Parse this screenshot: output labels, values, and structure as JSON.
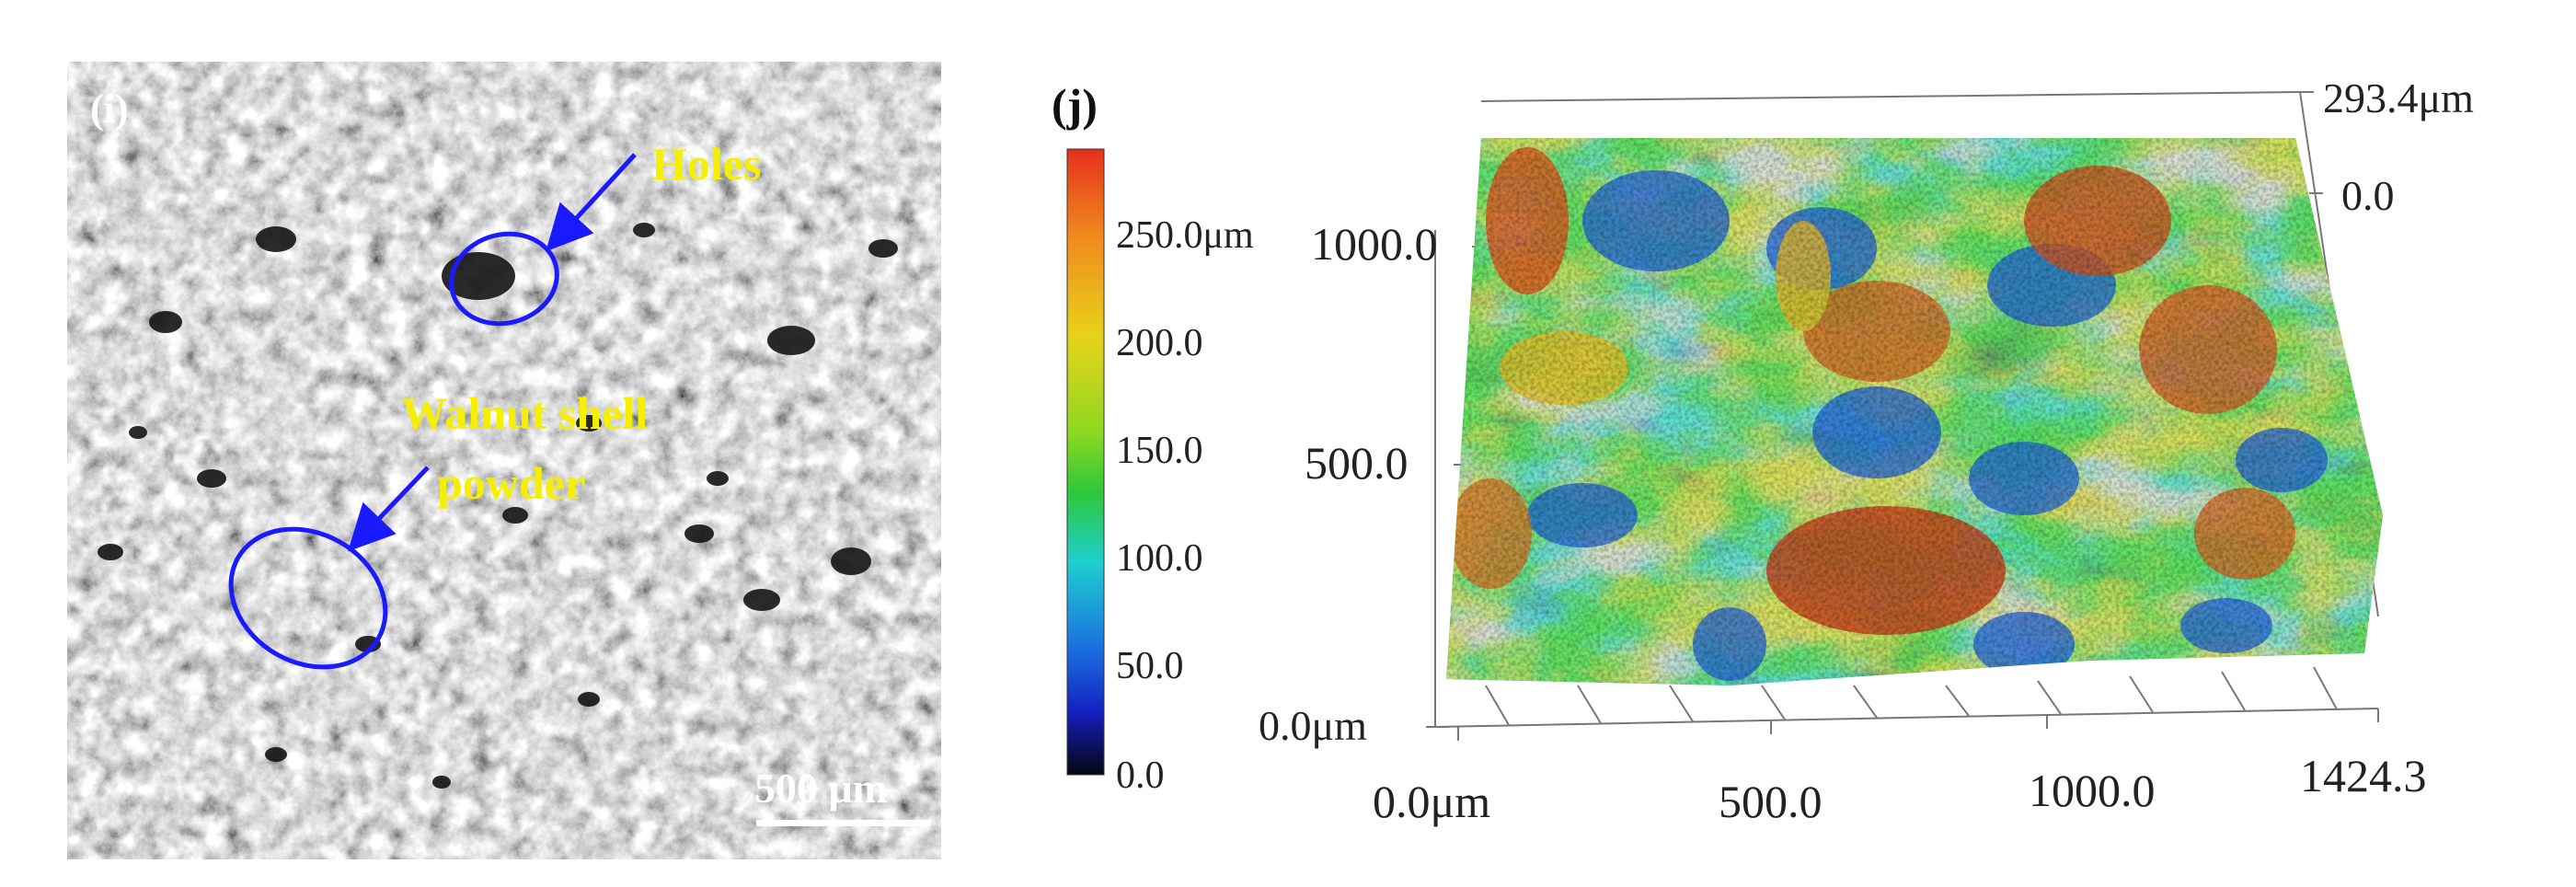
{
  "panel_i": {
    "label": "(i)",
    "annotations": {
      "holes": "Holes",
      "walnut_line1": "Walnut shell",
      "walnut_line2": "powder"
    },
    "scale_bar": "500 μm",
    "colors": {
      "annotation_text": "#f5f000",
      "arrow": "#1a1aff",
      "ellipse": "#1a1aff"
    }
  },
  "panel_j": {
    "label": "(j)",
    "colorbar": {
      "ticks": [
        "250.0μm",
        "200.0",
        "150.0",
        "100.0",
        "50.0",
        "0.0"
      ],
      "colors_top_to_bottom": [
        "#e6301c",
        "#f08a1e",
        "#e8d21a",
        "#8ed820",
        "#2ec83a",
        "#1ecfcf",
        "#1a6fe0",
        "#1420c0",
        "#050510"
      ]
    },
    "axes": {
      "z_top": "293.4μm",
      "z_zero": "0.0",
      "y_ticks": [
        "1000.0",
        "500.0",
        "0.0μm"
      ],
      "x_ticks": [
        "0.0μm",
        "500.0",
        "1000.0",
        "1424.3"
      ]
    }
  }
}
